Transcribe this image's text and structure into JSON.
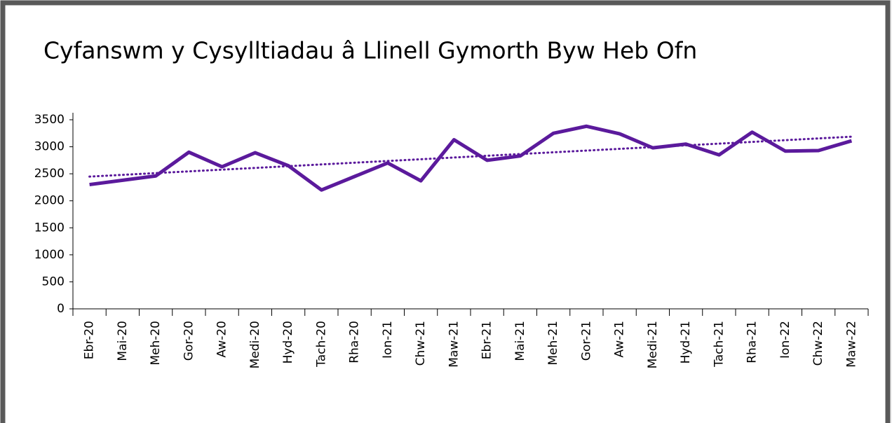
{
  "chart_data": {
    "type": "line",
    "title": "Cyfanswm y Cysylltiadau â Llinell Gymorth Byw Heb Ofn",
    "categories": [
      "Ebr-20",
      "Mai-20",
      "Meh-20",
      "Gor-20",
      "Aw-20",
      "Medi-20",
      "Hyd-20",
      "Tach-20",
      "Rha-20",
      "Ion-21",
      "Chw-21",
      "Maw-21",
      "Ebr-21",
      "Mai-21",
      "Meh-21",
      "Gor-21",
      "Aw-21",
      "Medi-21",
      "Hyd-21",
      "Tach-21",
      "Rha-21",
      "Ion-22",
      "Chw-22",
      "Maw-22"
    ],
    "values": [
      2300,
      2380,
      2460,
      2900,
      2630,
      2890,
      2650,
      2200,
      2450,
      2700,
      2370,
      3130,
      2750,
      2830,
      3250,
      3380,
      3240,
      2980,
      3050,
      2850,
      3270,
      2920,
      2930,
      3110
    ],
    "color": "#5b1a9c",
    "trendline": "linear",
    "ylim": [
      0,
      3500
    ],
    "yticks": [
      0,
      500,
      1000,
      1500,
      2000,
      2500,
      3000,
      3500
    ],
    "grid": false
  }
}
